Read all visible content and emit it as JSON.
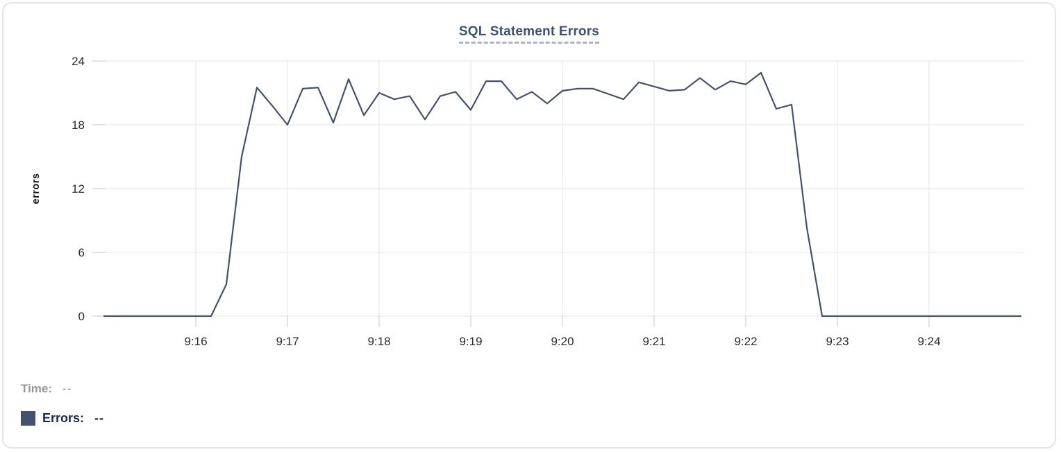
{
  "chart_data": {
    "type": "line",
    "title": "SQL Statement Errors",
    "xlabel": "",
    "ylabel": "errors",
    "ylim": [
      0,
      24
    ],
    "y_ticks": [
      0,
      6,
      12,
      18,
      24
    ],
    "grid": true,
    "legend_position": "bottom-left",
    "x_start": "9:15:00",
    "x_end": "9:25:00",
    "x_interval_seconds": 10,
    "x_tick_labels": [
      "9:16",
      "9:17",
      "9:18",
      "9:19",
      "9:20",
      "9:21",
      "9:22",
      "9:23",
      "9:24"
    ],
    "x_tick_offsets_seconds": [
      60,
      120,
      180,
      240,
      300,
      360,
      420,
      480,
      540
    ],
    "series": [
      {
        "name": "Errors",
        "color": "#44516e",
        "times": [
          "9:15:00",
          "9:15:10",
          "9:15:20",
          "9:15:30",
          "9:15:40",
          "9:15:50",
          "9:16:00",
          "9:16:10",
          "9:16:20",
          "9:16:30",
          "9:16:40",
          "9:16:50",
          "9:17:00",
          "9:17:10",
          "9:17:20",
          "9:17:30",
          "9:17:40",
          "9:17:50",
          "9:18:00",
          "9:18:10",
          "9:18:20",
          "9:18:30",
          "9:18:40",
          "9:18:50",
          "9:19:00",
          "9:19:10",
          "9:19:20",
          "9:19:30",
          "9:19:40",
          "9:19:50",
          "9:20:00",
          "9:20:10",
          "9:20:20",
          "9:20:30",
          "9:20:40",
          "9:20:50",
          "9:21:00",
          "9:21:10",
          "9:21:20",
          "9:21:30",
          "9:21:40",
          "9:21:50",
          "9:22:00",
          "9:22:10",
          "9:22:20",
          "9:22:30",
          "9:22:40",
          "9:22:50",
          "9:23:00",
          "9:23:10",
          "9:23:20",
          "9:23:30",
          "9:23:40",
          "9:23:50",
          "9:24:00",
          "9:24:10",
          "9:24:20",
          "9:24:30",
          "9:24:40",
          "9:24:50",
          "9:25:00"
        ],
        "values": [
          0,
          0,
          0,
          0,
          0,
          0,
          0,
          0,
          3,
          15,
          21.5,
          19.8,
          18,
          21.4,
          21.5,
          18.2,
          22.3,
          18.9,
          21,
          20.4,
          20.7,
          18.5,
          20.7,
          21.1,
          19.4,
          22.1,
          22.1,
          20.4,
          21.1,
          20,
          21.2,
          21.4,
          21.4,
          20.9,
          20.4,
          22,
          21.6,
          21.2,
          21.3,
          22.4,
          21.3,
          22.1,
          21.8,
          22.9,
          19.5,
          19.9,
          8.3,
          0,
          0,
          0,
          0,
          0,
          0,
          0,
          0,
          0,
          0,
          0,
          0,
          0,
          0
        ]
      }
    ]
  },
  "legend": {
    "time_label": "Time:",
    "time_value": "--",
    "series_label": "Errors:",
    "series_value": "--",
    "swatch_color": "#44516e"
  },
  "colors": {
    "title": "#3c5272",
    "title_underline": "#a9b4c9",
    "series_line": "#44516e",
    "gridline": "#ededed",
    "tick_mark": "#dcdcdc",
    "tick_label": "#2a2b2e",
    "time_text": "#94979c",
    "errors_text": "#1b294d",
    "card_border": "#e3e4e8"
  }
}
